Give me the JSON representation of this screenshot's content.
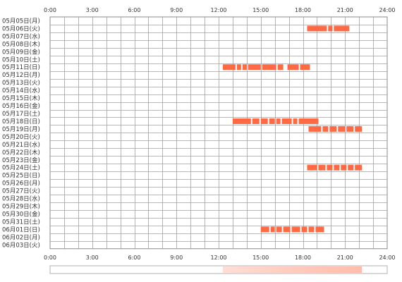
{
  "chart_data": {
    "type": "timeline",
    "x_ticks": [
      "0:00",
      "3:00",
      "6:00",
      "9:00",
      "12:00",
      "15:00",
      "18:00",
      "21:00",
      "24:00"
    ],
    "xlim": [
      0,
      24
    ],
    "grid": true,
    "bar_color": "#ff6a45",
    "rows": [
      {
        "label": "05月05日(月)",
        "segments": []
      },
      {
        "label": "05月06日(火)",
        "segments": [
          [
            18.3,
            19.7
          ],
          [
            19.8,
            20.1
          ],
          [
            20.2,
            21.3
          ]
        ]
      },
      {
        "label": "05月07日(水)",
        "segments": []
      },
      {
        "label": "05月08日(木)",
        "segments": []
      },
      {
        "label": "05月09日(金)",
        "segments": []
      },
      {
        "label": "05月10日(土)",
        "segments": []
      },
      {
        "label": "05月11日(日)",
        "segments": [
          [
            12.3,
            13.2
          ],
          [
            13.3,
            13.6
          ],
          [
            13.7,
            14.0
          ],
          [
            14.1,
            15.0
          ],
          [
            15.1,
            16.1
          ],
          [
            16.2,
            16.6
          ],
          [
            16.9,
            17.7
          ],
          [
            17.8,
            18.5
          ]
        ]
      },
      {
        "label": "05月12日(月)",
        "segments": []
      },
      {
        "label": "05月13日(火)",
        "segments": []
      },
      {
        "label": "05月14日(水)",
        "segments": []
      },
      {
        "label": "05月15日(木)",
        "segments": []
      },
      {
        "label": "05月16日(金)",
        "segments": []
      },
      {
        "label": "05月17日(土)",
        "segments": []
      },
      {
        "label": "05月18日(日)",
        "segments": [
          [
            13.0,
            14.3
          ],
          [
            14.4,
            14.9
          ],
          [
            15.0,
            15.5
          ],
          [
            15.6,
            16.0
          ],
          [
            16.1,
            16.4
          ],
          [
            16.5,
            17.2
          ],
          [
            17.3,
            17.6
          ],
          [
            17.7,
            19.1
          ]
        ]
      },
      {
        "label": "05月19日(月)",
        "segments": [
          [
            18.4,
            19.3
          ],
          [
            19.4,
            19.8
          ],
          [
            19.9,
            20.4
          ],
          [
            20.5,
            21.0
          ],
          [
            21.1,
            21.6
          ],
          [
            21.7,
            22.2
          ]
        ]
      },
      {
        "label": "05月20日(火)",
        "segments": []
      },
      {
        "label": "05月21日(水)",
        "segments": []
      },
      {
        "label": "05月22日(木)",
        "segments": []
      },
      {
        "label": "05月23日(金)",
        "segments": []
      },
      {
        "label": "05月24日(土)",
        "segments": [
          [
            18.3,
            19.0
          ],
          [
            19.1,
            19.6
          ],
          [
            19.7,
            20.1
          ],
          [
            20.2,
            20.6
          ],
          [
            20.7,
            21.1
          ],
          [
            21.2,
            21.6
          ],
          [
            21.7,
            22.2
          ]
        ]
      },
      {
        "label": "05月25日(日)",
        "segments": []
      },
      {
        "label": "05月26日(月)",
        "segments": []
      },
      {
        "label": "05月27日(火)",
        "segments": []
      },
      {
        "label": "05月28日(水)",
        "segments": []
      },
      {
        "label": "05月29日(木)",
        "segments": []
      },
      {
        "label": "05月30日(金)",
        "segments": []
      },
      {
        "label": "05月31日(土)",
        "segments": []
      },
      {
        "label": "06月01日(日)",
        "segments": [
          [
            15.0,
            15.6
          ],
          [
            15.7,
            16.0
          ],
          [
            16.1,
            16.5
          ],
          [
            16.6,
            17.1
          ],
          [
            17.2,
            17.8
          ],
          [
            17.9,
            18.3
          ],
          [
            18.4,
            18.8
          ],
          [
            18.9,
            19.5
          ]
        ]
      },
      {
        "label": "06月02日(月)",
        "segments": []
      },
      {
        "label": "06月03日(火)",
        "segments": []
      }
    ],
    "summary_strip": {
      "range": [
        12.3,
        22.2
      ],
      "color": "#ff6a45"
    }
  }
}
